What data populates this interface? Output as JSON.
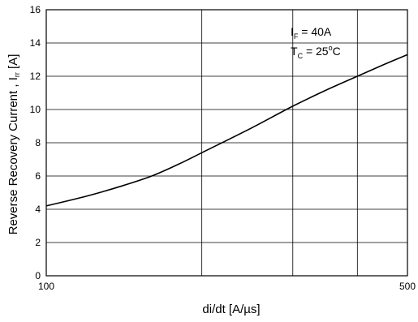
{
  "chart_data": {
    "type": "line",
    "xlabel": "di/dt [A/µs]",
    "ylabel_main": "Reverse Recovery Current , I",
    "ylabel_sub": "rr",
    "ylabel_unit": " [A]",
    "x_scale": "log",
    "xlim": [
      100,
      500
    ],
    "ylim": [
      0,
      16
    ],
    "x_tick_labels": [
      "100",
      "500"
    ],
    "x_gridlines": [
      200,
      300,
      400
    ],
    "y_ticks": [
      0,
      2,
      4,
      6,
      8,
      10,
      12,
      14,
      16
    ],
    "grid": true,
    "annotation": {
      "line1_main": "I",
      "line1_sub": "F",
      "line1_rest": " = 40A",
      "line2_main": "T",
      "line2_sub": "C",
      "line2_rest": " = 25",
      "line2_sup": "o",
      "line2_end": "C"
    },
    "series": [
      {
        "x": [
          100,
          120,
          140,
          160,
          180,
          200,
          250,
          300,
          350,
          400,
          450,
          500
        ],
        "y": [
          4.2,
          4.8,
          5.4,
          6.0,
          6.7,
          7.4,
          8.9,
          10.2,
          11.2,
          12.0,
          12.7,
          13.3
        ]
      }
    ]
  }
}
